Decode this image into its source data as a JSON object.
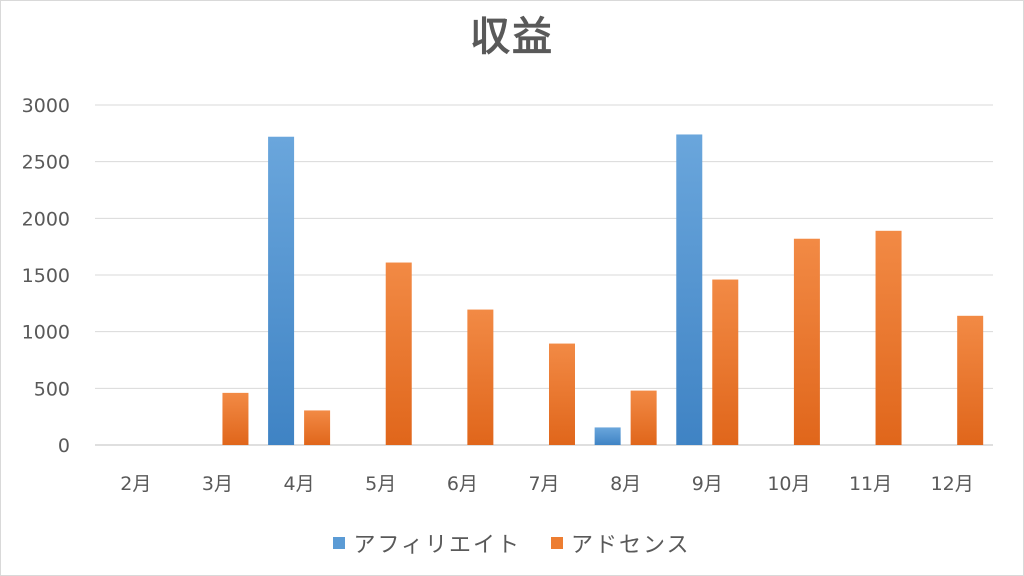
{
  "chart_data": {
    "type": "bar",
    "title": "収益",
    "xlabel": "",
    "ylabel": "",
    "categories": [
      "2月",
      "3月",
      "4月",
      "5月",
      "6月",
      "7月",
      "8月",
      "9月",
      "10月",
      "11月",
      "12月"
    ],
    "series": [
      {
        "name": "アフィリエイト",
        "color": "#5b9bd5",
        "values": [
          0,
          0,
          2720,
          0,
          0,
          0,
          155,
          2740,
          0,
          0,
          0
        ]
      },
      {
        "name": "アドセンス",
        "color": "#ed7d31",
        "values": [
          0,
          460,
          305,
          1610,
          1195,
          895,
          480,
          1460,
          1820,
          1890,
          1140
        ]
      }
    ],
    "ylim": [
      0,
      3000
    ],
    "yticks": [
      0,
      500,
      1000,
      1500,
      2000,
      2500,
      3000
    ],
    "grid": true,
    "legend_position": "bottom"
  }
}
